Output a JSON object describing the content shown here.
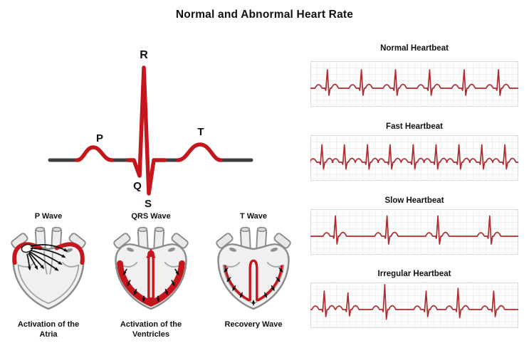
{
  "title": "Normal and Abnormal Heart Rate",
  "colors": {
    "wave_red": "#c4161c",
    "strip_red": "#ae2c30",
    "baseline_gray": "#3f3f3f",
    "text_ink": "#111111"
  },
  "pqrst_labels": {
    "p": "P",
    "q": "Q",
    "r": "R",
    "s": "S",
    "t": "T"
  },
  "hearts": [
    {
      "title": "P Wave",
      "caption": "Activation of the\nAtria"
    },
    {
      "title": "QRS Wave",
      "caption": "Activation of the\nVentricles"
    },
    {
      "title": "T Wave",
      "caption": "Recovery Wave"
    }
  ],
  "strips": [
    {
      "label": "Normal Heartbeat",
      "beats": [
        {
          "x": 0.08,
          "amp": 1
        },
        {
          "x": 0.244,
          "amp": 1
        },
        {
          "x": 0.408,
          "amp": 1
        },
        {
          "x": 0.572,
          "amp": 1
        },
        {
          "x": 0.738,
          "amp": 1
        },
        {
          "x": 0.903,
          "amp": 1
        }
      ]
    },
    {
      "label": "Fast Heartbeat",
      "beats": [
        {
          "x": 0.054,
          "amp": 0.95
        },
        {
          "x": 0.162,
          "amp": 0.95
        },
        {
          "x": 0.273,
          "amp": 0.95
        },
        {
          "x": 0.382,
          "amp": 0.95
        },
        {
          "x": 0.493,
          "amp": 0.95
        },
        {
          "x": 0.603,
          "amp": 0.95
        },
        {
          "x": 0.713,
          "amp": 0.95
        },
        {
          "x": 0.823,
          "amp": 0.95
        },
        {
          "x": 0.934,
          "amp": 0.95
        }
      ]
    },
    {
      "label": "Slow Heartbeat",
      "beats": [
        {
          "x": 0.119,
          "amp": 1.1
        },
        {
          "x": 0.367,
          "amp": 1.1
        },
        {
          "x": 0.612,
          "amp": 1.1
        },
        {
          "x": 0.861,
          "amp": 1.1
        }
      ]
    },
    {
      "label": "Irregular Heartbeat",
      "beats": [
        {
          "x": 0.065,
          "amp": 1
        },
        {
          "x": 0.179,
          "amp": 0.9
        },
        {
          "x": 0.356,
          "amp": 1.35
        },
        {
          "x": 0.555,
          "amp": 1
        },
        {
          "x": 0.709,
          "amp": 1.15
        },
        {
          "x": 0.88,
          "amp": 1
        }
      ]
    }
  ]
}
